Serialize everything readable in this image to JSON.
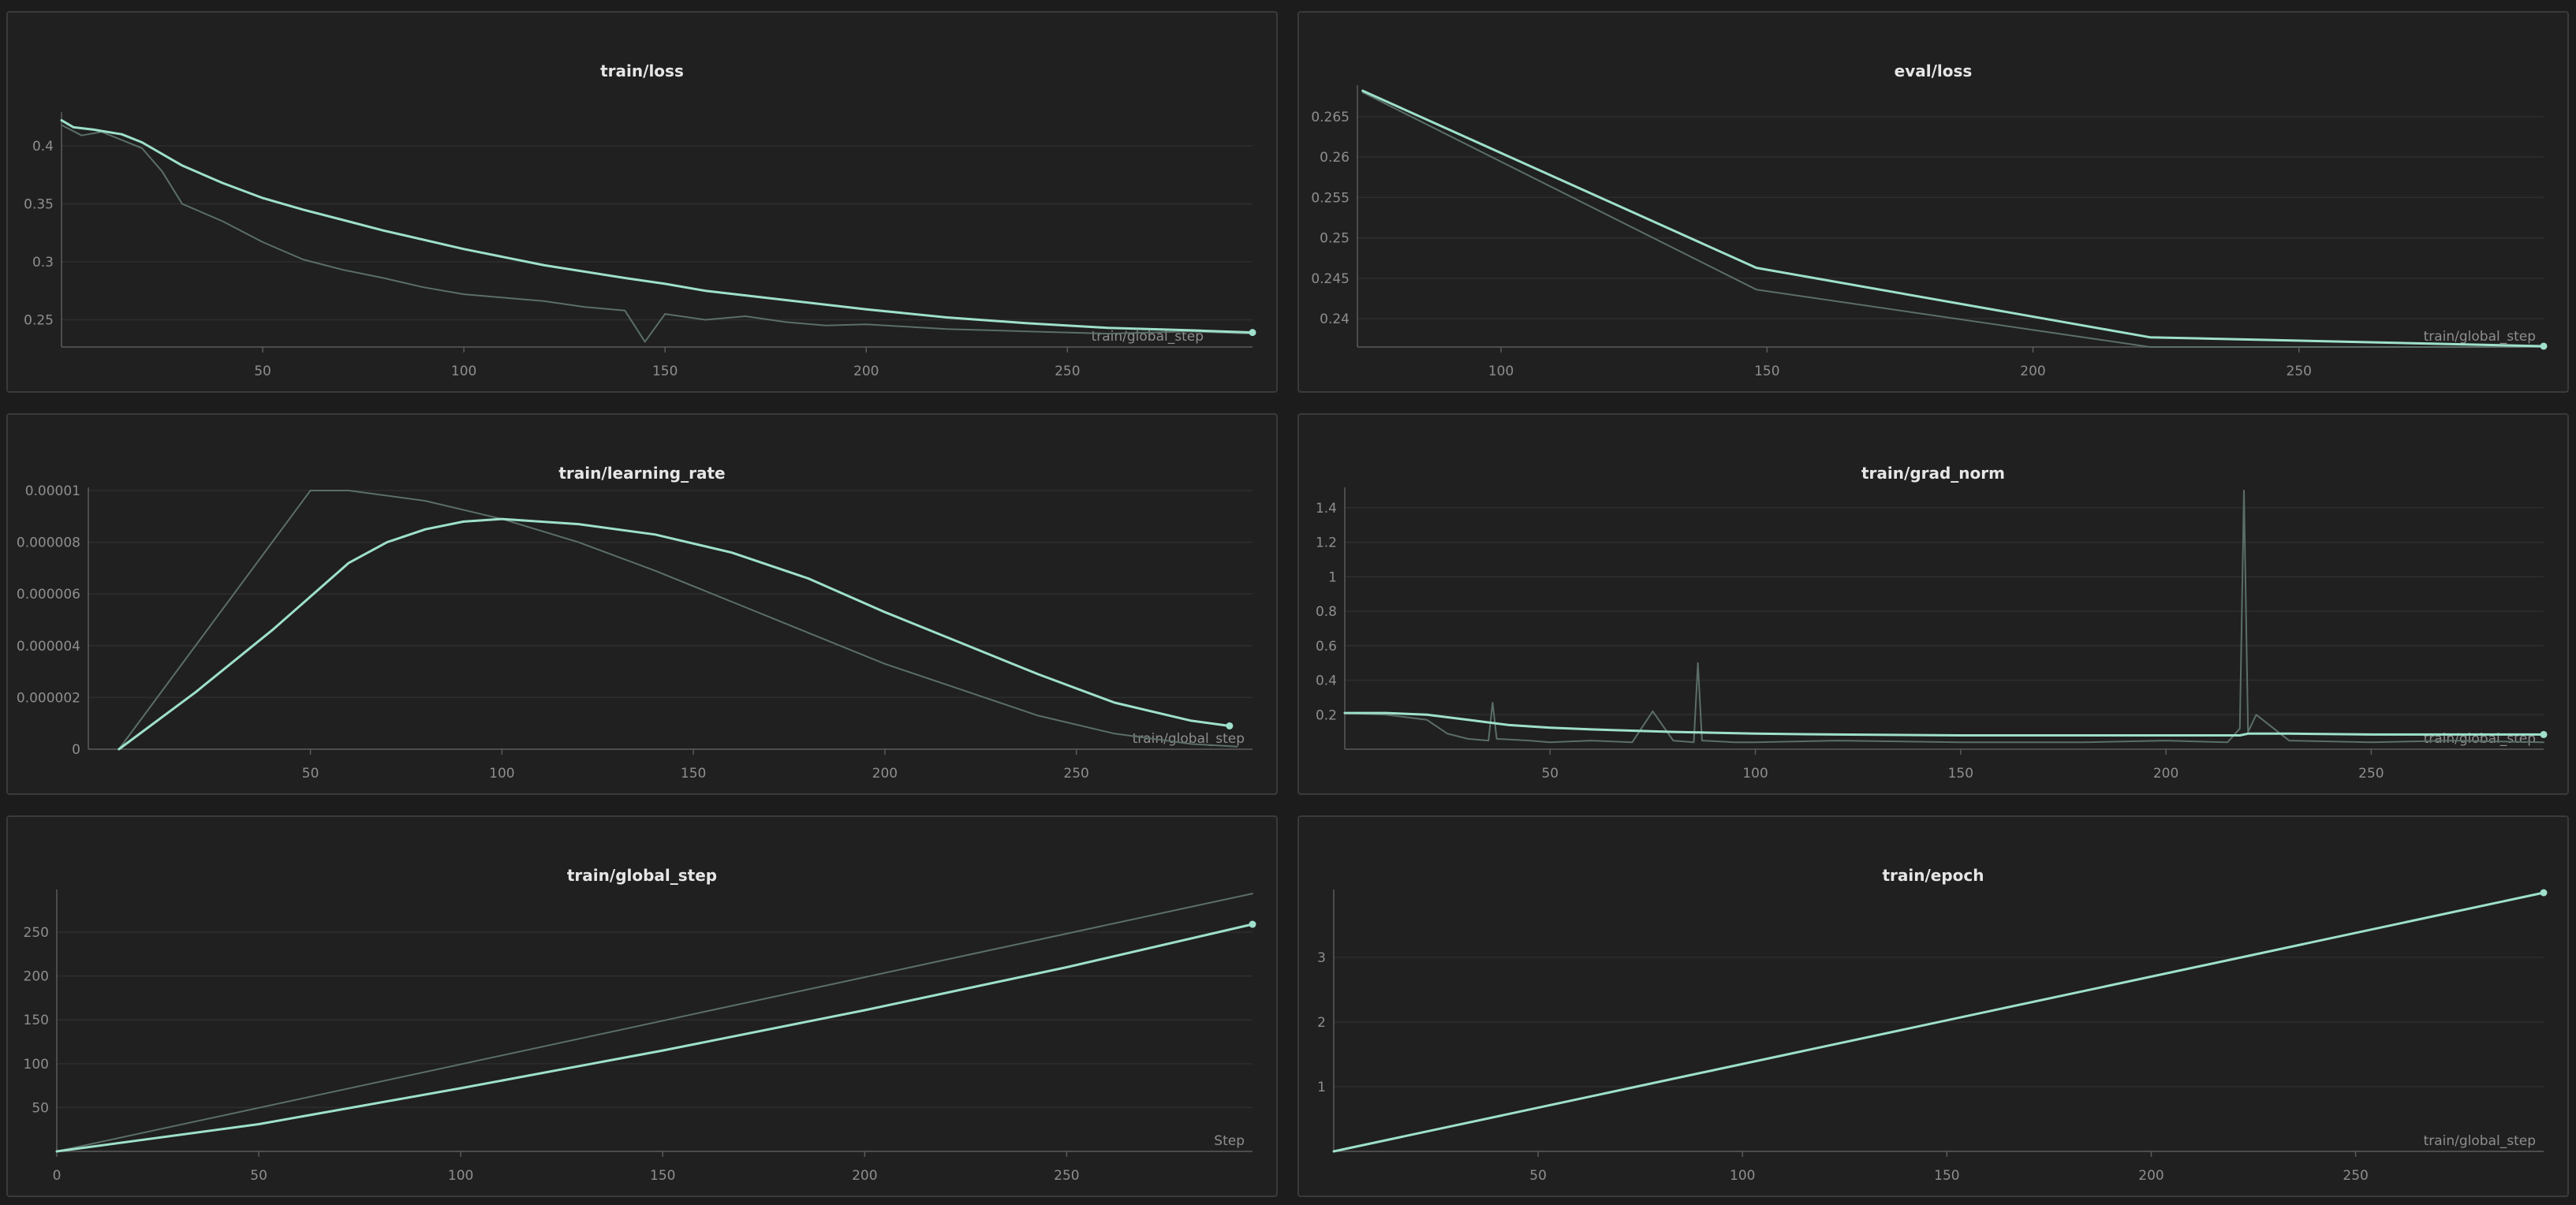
{
  "theme": {
    "background": "#202020",
    "grid": "#2e2e2e",
    "axis": "#5a5a5a",
    "primary_line": "#9ee0cc",
    "secondary_line": "#5b6e68"
  },
  "chart_data": [
    {
      "id": "train_loss",
      "type": "line",
      "title": "train/loss",
      "xlabel": "train/global_step",
      "xlim": [
        0,
        296
      ],
      "ylim": [
        0.2265,
        0.4265
      ],
      "xticks": [
        50,
        100,
        150,
        200,
        250
      ],
      "xtick_labels": [
        "50",
        "100",
        "150",
        "200",
        "250"
      ],
      "yticks": [
        0.25,
        0.3,
        0.35,
        0.4
      ],
      "ytick_labels": [
        "0.25",
        "0.3",
        "0.35",
        "0.4"
      ],
      "grid": true,
      "series": [
        {
          "style": "primary",
          "end_marker": true,
          "x": [
            0,
            3,
            8,
            15,
            20,
            30,
            40,
            50,
            60,
            70,
            80,
            100,
            120,
            140,
            150,
            160,
            180,
            200,
            220,
            240,
            260,
            280,
            296
          ],
          "y": [
            0.422,
            0.416,
            0.414,
            0.41,
            0.403,
            0.383,
            0.368,
            0.355,
            0.345,
            0.336,
            0.327,
            0.311,
            0.297,
            0.286,
            0.281,
            0.275,
            0.267,
            0.259,
            0.252,
            0.247,
            0.243,
            0.241,
            0.239
          ]
        },
        {
          "style": "secondary",
          "x": [
            0,
            5,
            10,
            15,
            20,
            25,
            30,
            40,
            50,
            60,
            70,
            80,
            90,
            100,
            110,
            120,
            130,
            140,
            145,
            150,
            160,
            170,
            180,
            190,
            200,
            220,
            240,
            260,
            280,
            296
          ],
          "y": [
            0.418,
            0.409,
            0.412,
            0.405,
            0.398,
            0.378,
            0.35,
            0.335,
            0.317,
            0.302,
            0.293,
            0.286,
            0.278,
            0.272,
            0.269,
            0.266,
            0.261,
            0.258,
            0.231,
            0.255,
            0.25,
            0.253,
            0.248,
            0.245,
            0.246,
            0.242,
            0.24,
            0.238,
            0.24,
            0.238
          ]
        }
      ]
    },
    {
      "id": "eval_loss",
      "type": "line",
      "title": "eval/loss",
      "xlabel": "train/global_step",
      "xlim": [
        73,
        296
      ],
      "ylim": [
        0.2365,
        0.2685
      ],
      "xticks": [
        100,
        150,
        200,
        250
      ],
      "xtick_labels": [
        "100",
        "150",
        "200",
        "250"
      ],
      "yticks": [
        0.24,
        0.245,
        0.25,
        0.255,
        0.26,
        0.265
      ],
      "ytick_labels": [
        "0.24",
        "0.245",
        "0.25",
        "0.255",
        "0.26",
        "0.265"
      ],
      "grid": true,
      "series": [
        {
          "style": "primary",
          "end_marker": true,
          "x": [
            74,
            148,
            222,
            296
          ],
          "y": [
            0.2682,
            0.2463,
            0.2377,
            0.2366
          ]
        },
        {
          "style": "secondary",
          "x": [
            74,
            148,
            222,
            296
          ],
          "y": [
            0.268,
            0.2436,
            0.2365,
            0.2365
          ]
        }
      ]
    },
    {
      "id": "train_learning_rate",
      "type": "line",
      "title": "train/learning_rate",
      "xlabel": "train/global_step",
      "xlim": [
        -8,
        296
      ],
      "ylim": [
        0,
        1e-05
      ],
      "xticks": [
        50,
        100,
        150,
        200,
        250
      ],
      "xtick_labels": [
        "50",
        "100",
        "150",
        "200",
        "250"
      ],
      "yticks": [
        0,
        2e-06,
        4e-06,
        6e-06,
        8e-06,
        1e-05
      ],
      "ytick_labels": [
        "0",
        "0.000002",
        "0.000004",
        "0.000006",
        "0.000008",
        "0.00001"
      ],
      "grid": true,
      "series": [
        {
          "style": "primary",
          "end_marker": true,
          "x": [
            0,
            20,
            40,
            50,
            60,
            70,
            80,
            90,
            100,
            110,
            120,
            140,
            160,
            180,
            200,
            220,
            240,
            260,
            280,
            290
          ],
          "y": [
            0,
            2.2e-06,
            4.6e-06,
            5.9e-06,
            7.2e-06,
            8e-06,
            8.5e-06,
            8.8e-06,
            8.9e-06,
            8.8e-06,
            8.7e-06,
            8.3e-06,
            7.6e-06,
            6.6e-06,
            5.3e-06,
            4.1e-06,
            2.9e-06,
            1.8e-06,
            1.1e-06,
            9e-07
          ]
        },
        {
          "style": "secondary",
          "x": [
            0,
            50,
            60,
            80,
            100,
            120,
            140,
            160,
            180,
            200,
            220,
            240,
            260,
            280,
            292
          ],
          "y": [
            0,
            1e-05,
            1e-05,
            9.6e-06,
            8.9e-06,
            8e-06,
            6.9e-06,
            5.7e-06,
            4.5e-06,
            3.3e-06,
            2.3e-06,
            1.3e-06,
            6e-07,
            2e-07,
            1e-07
          ]
        }
      ]
    },
    {
      "id": "train_grad_norm",
      "type": "line",
      "title": "train/grad_norm",
      "xlabel": "train/global_step",
      "xlim": [
        0,
        292
      ],
      "ylim": [
        0,
        1.5
      ],
      "xticks": [
        50,
        100,
        150,
        200,
        250
      ],
      "xtick_labels": [
        "50",
        "100",
        "150",
        "200",
        "250"
      ],
      "yticks": [
        0.2,
        0.4,
        0.6,
        0.8,
        1,
        1.2,
        1.4
      ],
      "ytick_labels": [
        "0.2",
        "0.4",
        "0.6",
        "0.8",
        "1",
        "1.2",
        "1.4"
      ],
      "grid": true,
      "series": [
        {
          "style": "primary",
          "end_marker": true,
          "x": [
            0,
            10,
            20,
            30,
            40,
            50,
            60,
            80,
            100,
            120,
            150,
            180,
            200,
            218,
            220,
            230,
            250,
            270,
            292
          ],
          "y": [
            0.21,
            0.21,
            0.2,
            0.17,
            0.14,
            0.125,
            0.115,
            0.1,
            0.09,
            0.085,
            0.08,
            0.08,
            0.08,
            0.08,
            0.09,
            0.09,
            0.085,
            0.085,
            0.085
          ]
        },
        {
          "style": "secondary",
          "x": [
            0,
            10,
            20,
            25,
            30,
            35,
            36,
            37,
            45,
            50,
            60,
            70,
            75,
            80,
            85,
            86,
            87,
            95,
            100,
            120,
            150,
            180,
            200,
            215,
            218,
            219,
            220,
            222,
            230,
            250,
            270,
            292
          ],
          "y": [
            0.21,
            0.2,
            0.17,
            0.09,
            0.06,
            0.05,
            0.27,
            0.06,
            0.05,
            0.04,
            0.05,
            0.04,
            0.22,
            0.05,
            0.04,
            0.5,
            0.05,
            0.04,
            0.04,
            0.05,
            0.04,
            0.04,
            0.05,
            0.04,
            0.12,
            1.5,
            0.1,
            0.2,
            0.05,
            0.04,
            0.05,
            0.04
          ]
        }
      ]
    },
    {
      "id": "train_global_step",
      "type": "line",
      "title": "train/global_step",
      "xlabel": "Step",
      "xlim": [
        0,
        296
      ],
      "ylim": [
        0,
        295
      ],
      "xticks": [
        0,
        50,
        100,
        150,
        200,
        250
      ],
      "xtick_labels": [
        "0",
        "50",
        "100",
        "150",
        "200",
        "250"
      ],
      "yticks": [
        50,
        100,
        150,
        200,
        250
      ],
      "ytick_labels": [
        "50",
        "100",
        "150",
        "200",
        "250"
      ],
      "grid": true,
      "series": [
        {
          "style": "primary",
          "end_marker": true,
          "x": [
            0,
            50,
            100,
            150,
            200,
            250,
            296
          ],
          "y": [
            0,
            31,
            72,
            115,
            161,
            210,
            259
          ]
        },
        {
          "style": "secondary",
          "x": [
            0,
            296
          ],
          "y": [
            0,
            294
          ]
        }
      ]
    },
    {
      "id": "train_epoch",
      "type": "line",
      "title": "train/epoch",
      "xlabel": "train/global_step",
      "xlim": [
        0,
        296
      ],
      "ylim": [
        0,
        4
      ],
      "xticks": [
        50,
        100,
        150,
        200,
        250
      ],
      "xtick_labels": [
        "50",
        "100",
        "150",
        "200",
        "250"
      ],
      "yticks": [
        1,
        2,
        3
      ],
      "ytick_labels": [
        "1",
        "2",
        "3"
      ],
      "grid": true,
      "series": [
        {
          "style": "primary",
          "end_marker": true,
          "x": [
            0,
            296
          ],
          "y": [
            0,
            4
          ]
        }
      ]
    }
  ]
}
